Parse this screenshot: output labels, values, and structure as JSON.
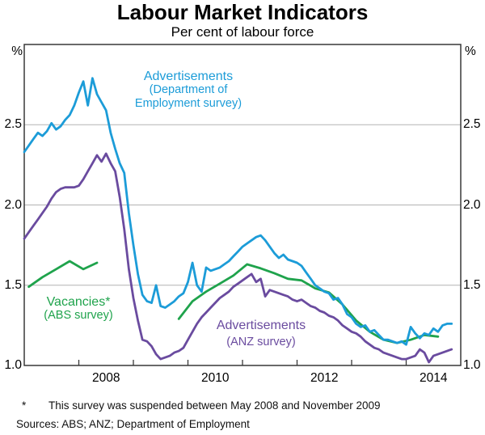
{
  "colors": {
    "grid": "#b3b3b3",
    "axis": "#383838",
    "blue": "#1C9CD8",
    "green": "#1FA34C",
    "purple": "#6A4B9F"
  },
  "annotations": {
    "doe": {
      "line1": "Advertisements",
      "line2": "(Department of",
      "line3": "Employment survey)"
    },
    "abs": {
      "line1": "Vacancies*",
      "line2": "(ABS survey)"
    },
    "anz": {
      "line1": "Advertisements",
      "line2": "(ANZ survey)"
    }
  },
  "footnotes": {
    "star": "*",
    "note": "This survey was suspended between May 2008 and November 2009",
    "sources": "Sources:  ABS; ANZ; Department of Employment"
  },
  "chart_data": {
    "type": "line",
    "title": "Labour Market Indicators",
    "subtitle": "Per cent of labour force",
    "axes": {
      "unit": "%",
      "xlim": [
        2007,
        2015
      ],
      "ylim": [
        1.0,
        3.0
      ],
      "yticks": [
        1.0,
        1.5,
        2.0,
        2.5
      ],
      "ygrid": [
        1.5,
        2.0,
        2.5
      ],
      "xticks": [
        2008,
        2009,
        2010,
        2011,
        2012,
        2013,
        2014
      ],
      "xlabels": [
        2008,
        2010,
        2012,
        2014
      ],
      "grid": true,
      "legend": "inline-annotations"
    },
    "series": [
      {
        "name": "Vacancies (ABS survey)",
        "color": "#1FA34C",
        "frequency": "quarterly",
        "note": "suspended May 2008 to November 2009",
        "segments": [
          {
            "start": 2007.0833,
            "step": 0.25,
            "values": [
              1.49,
              1.55,
              1.6,
              1.65,
              1.6,
              1.64
            ]
          },
          {
            "start": 2009.8333,
            "step": 0.25,
            "values": [
              1.29,
              1.4,
              1.46,
              1.51,
              1.56,
              1.63,
              1.605,
              1.575,
              1.54,
              1.53,
              1.48,
              1.455,
              1.38,
              1.28,
              1.21,
              1.16,
              1.14,
              1.16,
              1.19,
              1.18
            ]
          }
        ]
      },
      {
        "name": "Advertisements (ANZ survey)",
        "color": "#6A4B9F",
        "frequency": "monthly",
        "segments": [
          {
            "start": 2007.0,
            "step": 0.0833333,
            "values": [
              1.79,
              1.83,
              1.87,
              1.91,
              1.95,
              1.99,
              2.04,
              2.08,
              2.1,
              2.11,
              2.11,
              2.11,
              2.12,
              2.16,
              2.21,
              2.26,
              2.31,
              2.27,
              2.32,
              2.26,
              2.21,
              2.05,
              1.85,
              1.6,
              1.42,
              1.28,
              1.16,
              1.15,
              1.12,
              1.07,
              1.04,
              1.05,
              1.06,
              1.08,
              1.09,
              1.11,
              1.16,
              1.21,
              1.26,
              1.3,
              1.33,
              1.36,
              1.39,
              1.42,
              1.44,
              1.46,
              1.49,
              1.51,
              1.53,
              1.55,
              1.57,
              1.52,
              1.54,
              1.43,
              1.47,
              1.46,
              1.45,
              1.44,
              1.43,
              1.41,
              1.4,
              1.41,
              1.39,
              1.37,
              1.36,
              1.34,
              1.33,
              1.31,
              1.3,
              1.28,
              1.25,
              1.23,
              1.21,
              1.2,
              1.18,
              1.15,
              1.13,
              1.11,
              1.1,
              1.08,
              1.07,
              1.06,
              1.05,
              1.04,
              1.04,
              1.05,
              1.06,
              1.1,
              1.08,
              1.02,
              1.06,
              1.07,
              1.08,
              1.09,
              1.1
            ]
          }
        ]
      },
      {
        "name": "Advertisements (Department of Employment survey)",
        "color": "#1C9CD8",
        "frequency": "monthly",
        "segments": [
          {
            "start": 2007.0,
            "step": 0.0833333,
            "values": [
              2.33,
              2.37,
              2.41,
              2.45,
              2.43,
              2.46,
              2.51,
              2.47,
              2.49,
              2.53,
              2.56,
              2.62,
              2.7,
              2.77,
              2.62,
              2.79,
              2.69,
              2.64,
              2.59,
              2.45,
              2.35,
              2.26,
              2.2,
              1.95,
              1.75,
              1.57,
              1.44,
              1.4,
              1.39,
              1.5,
              1.37,
              1.36,
              1.38,
              1.4,
              1.43,
              1.45,
              1.52,
              1.64,
              1.5,
              1.46,
              1.61,
              1.59,
              1.6,
              1.61,
              1.63,
              1.65,
              1.68,
              1.71,
              1.74,
              1.76,
              1.78,
              1.8,
              1.81,
              1.78,
              1.74,
              1.7,
              1.67,
              1.69,
              1.66,
              1.65,
              1.64,
              1.62,
              1.58,
              1.54,
              1.5,
              1.48,
              1.46,
              1.45,
              1.41,
              1.42,
              1.38,
              1.32,
              1.3,
              1.26,
              1.24,
              1.25,
              1.21,
              1.22,
              1.19,
              1.16,
              1.16,
              1.15,
              1.14,
              1.15,
              1.13,
              1.24,
              1.2,
              1.17,
              1.2,
              1.19,
              1.23,
              1.21,
              1.25,
              1.26,
              1.26
            ]
          }
        ]
      }
    ]
  }
}
